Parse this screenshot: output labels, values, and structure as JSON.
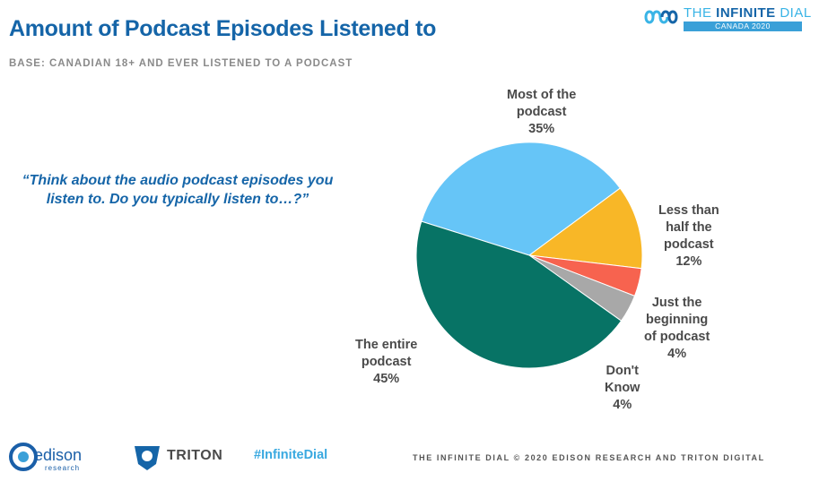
{
  "header": {
    "title": "Amount of Podcast Episodes Listened to",
    "base": "BASE: CANADIAN 18+ AND EVER LISTENED TO A PODCAST"
  },
  "question": "“Think about the audio podcast episodes you listen to.  Do you typically listen to…?”",
  "brand": {
    "top_logo_prefix": "THE ",
    "top_logo_emph": "INFINITE",
    "top_logo_suffix": " DIAL",
    "top_logo_country": "CANADA 2020"
  },
  "footer": {
    "edison_name": "edison",
    "edison_sub": "research",
    "triton_name": "TRITON",
    "hashtag": "#InfiniteDial",
    "credit": "THE INFINITE DIAL   © 2020 EDISON RESEARCH AND TRITON DIGITAL"
  },
  "chart_data": {
    "type": "pie",
    "slices": [
      {
        "label": "Most of the\npodcast\n35%",
        "category": "Most of the podcast",
        "value": 35,
        "color": "#66c5f7"
      },
      {
        "label": "Less than\nhalf the\npodcast\n12%",
        "category": "Less than half the podcast",
        "value": 12,
        "color": "#f8b727"
      },
      {
        "label": "Just the\nbeginning\nof podcast\n4%",
        "category": "Just the beginning of podcast",
        "value": 4,
        "color": "#f7634f"
      },
      {
        "label": "Don't\nKnow\n4%",
        "category": "Don't Know",
        "value": 4,
        "color": "#a8a8a8"
      },
      {
        "label": "The entire\npodcast\n45%",
        "category": "The entire podcast",
        "value": 45,
        "color": "#077365"
      }
    ]
  }
}
